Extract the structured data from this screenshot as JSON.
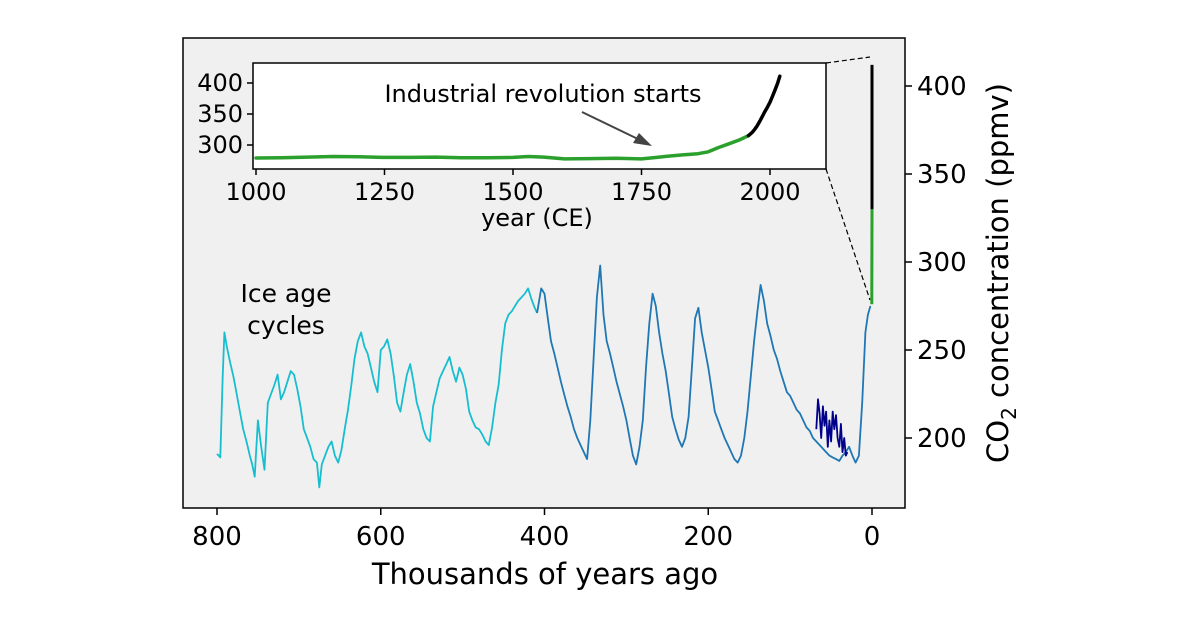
{
  "chart_data": [
    {
      "type": "line",
      "title": "",
      "xlabel": "Thousands of years ago",
      "ylabel_main": "CO",
      "ylabel_sub": "2",
      "ylabel_rest": " concentration (ppmv)",
      "xlim": [
        805,
        -50
      ],
      "ylim": [
        160,
        420
      ],
      "x_ticks": [
        {
          "value": 800,
          "label": "800"
        },
        {
          "value": 600,
          "label": "600"
        },
        {
          "value": 400,
          "label": "400"
        },
        {
          "value": 200,
          "label": "200"
        },
        {
          "value": 0,
          "label": "0"
        }
      ],
      "y_ticks": [
        {
          "value": 200,
          "label": "200"
        },
        {
          "value": 250,
          "label": "250"
        },
        {
          "value": 300,
          "label": "300"
        },
        {
          "value": 350,
          "label": "350"
        },
        {
          "value": 400,
          "label": "400"
        }
      ],
      "y_axis_side": "right",
      "grid": false,
      "annotations": [
        {
          "id": "ice-age",
          "lines": [
            "Ice age",
            "cycles"
          ]
        }
      ],
      "series": [
        {
          "color": "#17becf",
          "x": [
            800,
            796,
            793,
            791,
            788,
            784,
            780,
            776,
            772,
            768,
            764,
            760,
            757,
            754,
            750,
            746,
            742,
            738,
            734,
            730,
            726,
            722,
            718,
            714,
            710,
            706,
            702,
            698,
            694,
            690,
            686,
            682,
            678,
            675,
            672,
            668,
            664,
            660,
            656,
            652,
            648,
            644,
            640,
            636,
            632,
            628,
            624,
            620,
            616,
            612,
            608,
            604,
            600,
            596,
            592,
            588,
            584,
            580,
            576,
            572,
            568,
            564,
            560,
            556,
            552,
            548,
            544,
            540,
            536,
            532,
            528,
            524,
            520,
            516,
            512,
            508,
            504,
            500,
            496,
            492,
            488,
            484,
            480,
            476,
            472,
            468,
            464,
            460,
            456,
            452,
            448,
            444,
            440,
            436,
            432,
            428,
            424,
            420,
            416,
            412,
            409
          ],
          "y": [
            191,
            189,
            235,
            260,
            252,
            243,
            235,
            225,
            215,
            205,
            198,
            190,
            185,
            178,
            210,
            195,
            182,
            220,
            225,
            230,
            236,
            222,
            226,
            232,
            238,
            236,
            228,
            218,
            205,
            200,
            195,
            188,
            186,
            172,
            185,
            190,
            195,
            198,
            190,
            186,
            193,
            205,
            216,
            230,
            245,
            255,
            260,
            252,
            248,
            240,
            232,
            226,
            250,
            252,
            256,
            248,
            235,
            220,
            215,
            226,
            236,
            242,
            232,
            220,
            214,
            205,
            200,
            198,
            218,
            226,
            234,
            238,
            242,
            246,
            238,
            232,
            240,
            236,
            228,
            215,
            210,
            206,
            205,
            202,
            198,
            196,
            206,
            220,
            230,
            250,
            265,
            270,
            272,
            275,
            278,
            280,
            282,
            285,
            279,
            274,
            271
          ]
        },
        {
          "color": "#1f77b4",
          "x": [
            409,
            404,
            400,
            396,
            392,
            388,
            384,
            380,
            376,
            372,
            368,
            364,
            360,
            356,
            352,
            348,
            344,
            340,
            336,
            332,
            328,
            324,
            320,
            316,
            312,
            308,
            304,
            300,
            296,
            292,
            288,
            284,
            280,
            276,
            272,
            268,
            264,
            260,
            256,
            252,
            248,
            244,
            240,
            236,
            232,
            228,
            224,
            220,
            216,
            212,
            208,
            204,
            200,
            196,
            192,
            188,
            184,
            180,
            176,
            172,
            168,
            164,
            160,
            156,
            152,
            148,
            144,
            140,
            136,
            132,
            128,
            124,
            120,
            116,
            112,
            108,
            104,
            100,
            96,
            92,
            88,
            84,
            80,
            76,
            72,
            68,
            64,
            60,
            56,
            52,
            48,
            44,
            40,
            36,
            32,
            28,
            24,
            20,
            16,
            12,
            8,
            5,
            2
          ],
          "y": [
            271,
            285,
            282,
            268,
            255,
            248,
            240,
            232,
            225,
            218,
            212,
            205,
            200,
            196,
            192,
            188,
            210,
            245,
            280,
            298,
            270,
            255,
            248,
            240,
            232,
            225,
            218,
            210,
            200,
            190,
            185,
            195,
            210,
            240,
            265,
            282,
            275,
            260,
            248,
            238,
            225,
            212,
            205,
            199,
            195,
            200,
            212,
            240,
            268,
            274,
            260,
            250,
            240,
            228,
            215,
            210,
            205,
            200,
            196,
            192,
            188,
            186,
            190,
            200,
            215,
            235,
            255,
            272,
            287,
            278,
            265,
            258,
            250,
            245,
            238,
            232,
            226,
            224,
            220,
            216,
            214,
            210,
            206,
            204,
            200,
            198,
            196,
            194,
            192,
            190,
            189,
            188,
            187,
            190,
            192,
            195,
            190,
            186,
            190,
            220,
            260,
            270,
            275
          ]
        },
        {
          "color": "#00008b",
          "x": [
            68,
            66,
            64,
            62,
            60,
            58,
            56,
            54,
            52,
            50,
            48,
            46,
            44,
            42,
            40,
            38,
            36,
            34,
            32,
            30
          ],
          "y": [
            205,
            222,
            214,
            200,
            218,
            207,
            215,
            195,
            210,
            198,
            215,
            205,
            213,
            200,
            195,
            208,
            192,
            200,
            190,
            192
          ]
        },
        {
          "color": "#2ca02c",
          "x": [
            0.3,
            0.22,
            0.1,
            0.06
          ],
          "y": [
            276,
            284,
            305,
            330
          ]
        },
        {
          "color": "#000000",
          "x": [
            0.06,
            0.05,
            0.04,
            0.03,
            0.02,
            0.01,
            0.0,
            -0.01
          ],
          "y": [
            330,
            340,
            350,
            360,
            372,
            385,
            400,
            412
          ]
        }
      ]
    },
    {
      "type": "line",
      "title": "",
      "xlabel": "year (CE)",
      "ylabel": "",
      "xlim": [
        1000,
        2065
      ],
      "ylim": [
        270,
        420
      ],
      "x_ticks": [
        {
          "value": 1000,
          "label": "1000"
        },
        {
          "value": 1250,
          "label": "1250"
        },
        {
          "value": 1500,
          "label": "1500"
        },
        {
          "value": 1750,
          "label": "1750"
        },
        {
          "value": 2000,
          "label": "2000"
        }
      ],
      "y_ticks": [
        {
          "value": 300,
          "label": "300"
        },
        {
          "value": 350,
          "label": "350"
        },
        {
          "value": 400,
          "label": "400"
        }
      ],
      "grid": false,
      "annotations": [
        {
          "id": "industrial",
          "text": "Industrial revolution starts",
          "x": 1750,
          "y": 282
        }
      ],
      "series": [
        {
          "color": "#2ca02c",
          "x": [
            1000,
            1050,
            1100,
            1150,
            1200,
            1250,
            1300,
            1350,
            1400,
            1450,
            1500,
            1530,
            1560,
            1600,
            1650,
            1700,
            1750,
            1780,
            1800,
            1830,
            1860,
            1880,
            1900,
            1920,
            1940,
            1958
          ],
          "y": [
            279,
            279.5,
            280.5,
            281.5,
            281,
            280,
            280,
            280.5,
            279.5,
            279.5,
            280,
            281.5,
            280.5,
            277.5,
            278,
            278.5,
            277.5,
            280,
            282,
            284,
            286,
            289,
            296,
            302,
            308,
            315
          ]
        },
        {
          "color": "#000000",
          "x": [
            1958,
            1965,
            1970,
            1975,
            1980,
            1985,
            1990,
            1995,
            2000,
            2005,
            2010,
            2015,
            2019
          ],
          "y": [
            315,
            320,
            325,
            331,
            338,
            346,
            354,
            361,
            369,
            379,
            389,
            400,
            411
          ]
        }
      ]
    }
  ]
}
